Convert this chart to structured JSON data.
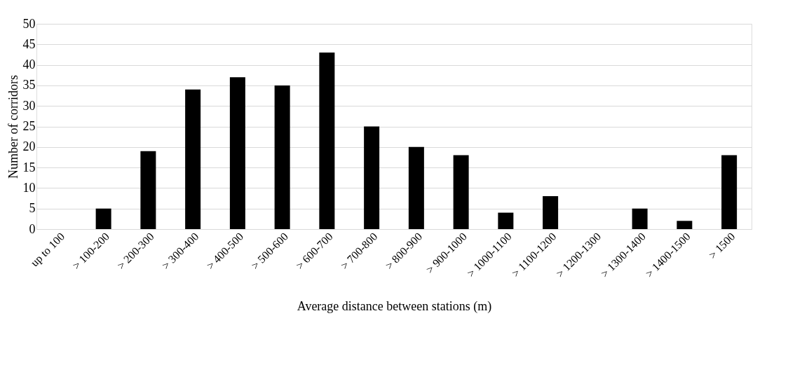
{
  "chart_data": {
    "type": "bar",
    "xlabel": "Average distance between stations (m)",
    "ylabel": "Number of corridors",
    "categories": [
      "up to 100",
      "> 100-200",
      "> 200-300",
      "> 300-400",
      "> 400-500",
      "> 500-600",
      "> 600-700",
      "> 700-800",
      "> 800-900",
      "> 900-1000",
      "> 1000-1100",
      "> 1100-1200",
      "> 1200-1300",
      "> 1300-1400",
      "> 1400-1500",
      "> 1500"
    ],
    "values": [
      0,
      5,
      19,
      34,
      37,
      35,
      43,
      25,
      20,
      18,
      4,
      8,
      0,
      5,
      2,
      18
    ],
    "color": "#000000",
    "ylim": [
      0,
      50
    ],
    "yticks": [
      0,
      5,
      10,
      15,
      20,
      25,
      30,
      35,
      40,
      45,
      50
    ],
    "grid": "y"
  }
}
